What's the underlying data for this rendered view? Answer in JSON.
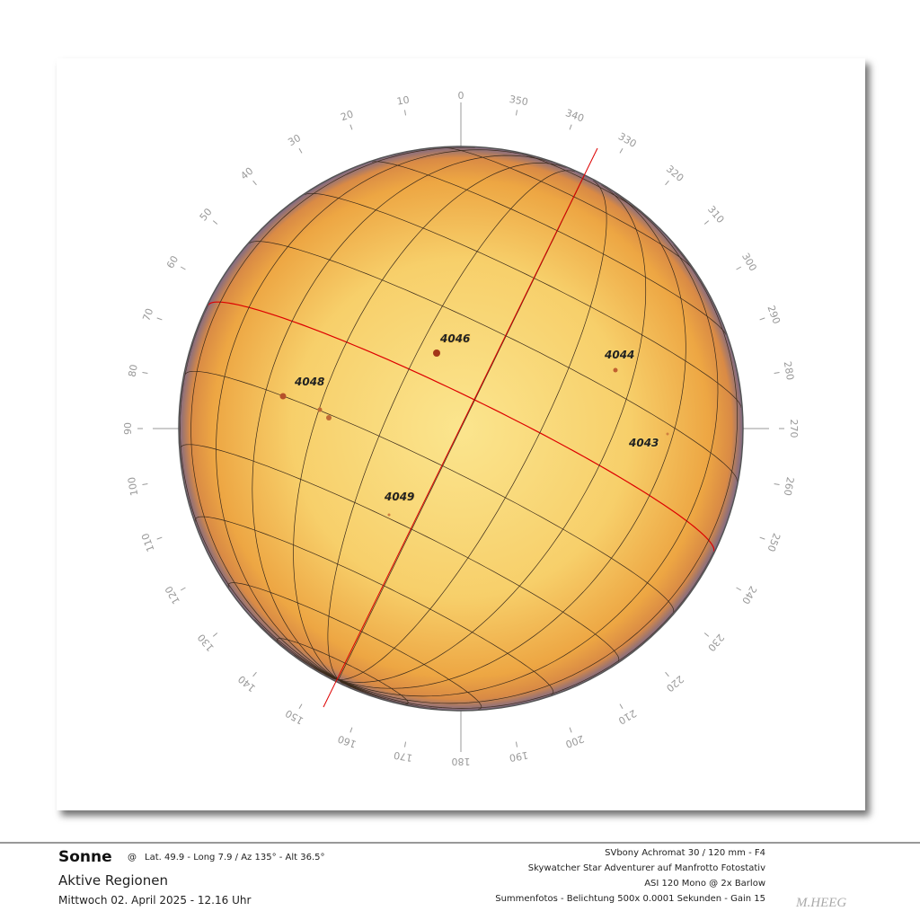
{
  "compass": {
    "labels": [
      0,
      10,
      20,
      30,
      40,
      50,
      60,
      70,
      80,
      90,
      100,
      110,
      120,
      130,
      140,
      150,
      160,
      170,
      180,
      190,
      200,
      210,
      220,
      230,
      240,
      250,
      260,
      270,
      280,
      290,
      300,
      310,
      320,
      330,
      340,
      350
    ]
  },
  "regions": [
    {
      "label": "4046"
    },
    {
      "label": "4044"
    },
    {
      "label": "4048"
    },
    {
      "label": "4043"
    },
    {
      "label": "4049"
    }
  ],
  "footer": {
    "object": "Sonne",
    "at": "@",
    "location": "Lat. 49.9 - Long 7.9 / Az 135° - Alt 36.5°",
    "subtitle": "Aktive Regionen",
    "date": "Mittwoch 02. April 2025 - 12.16 Uhr",
    "equipment": [
      "SVbony Achromat 30 / 120 mm - F4",
      "Skywatcher Star Adventurer auf Manfrotto Fotostativ",
      "ASI 120 Mono @ 2x Barlow",
      "Summenfotos - Belichtung 500x 0.0001 Sekunden - Gain 15"
    ],
    "signature": "M.HEEG"
  }
}
